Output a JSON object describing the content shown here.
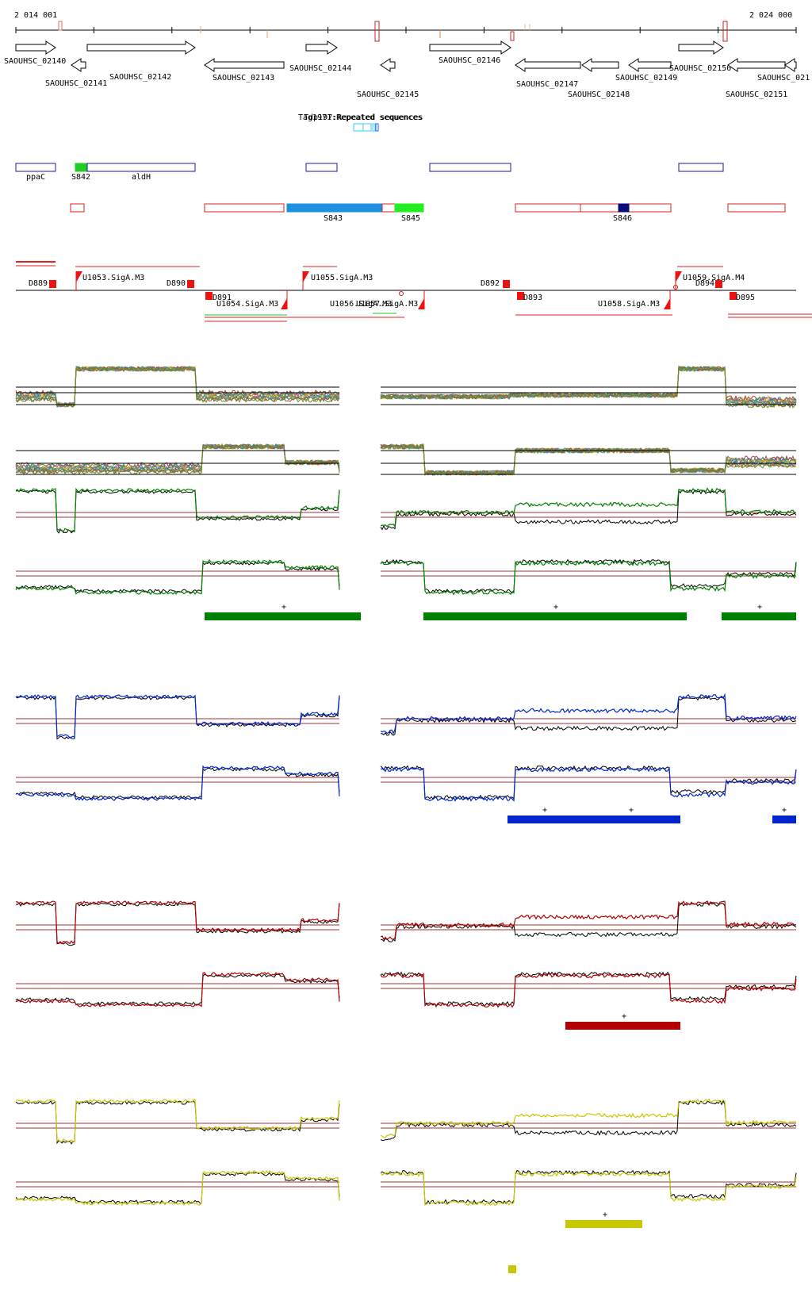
{
  "axis": {
    "start_label": "2 014 001",
    "end_label": "2 024 000"
  },
  "genes": [
    {
      "id": "SAOUHSC_02140",
      "strand": "+",
      "row": 0
    },
    {
      "id": "SAOUHSC_02141",
      "strand": "-",
      "row": 1
    },
    {
      "id": "SAOUHSC_02142",
      "strand": "+",
      "row": 0
    },
    {
      "id": "SAOUHSC_02143",
      "strand": "-",
      "row": 1
    },
    {
      "id": "SAOUHSC_02144",
      "strand": "+",
      "row": 0
    },
    {
      "id": "SAOUHSC_02145",
      "strand": "-",
      "row": 1
    },
    {
      "id": "SAOUHSC_02146",
      "strand": "+",
      "row": 0
    },
    {
      "id": "SAOUHSC_02147",
      "strand": "-",
      "row": 1
    },
    {
      "id": "SAOUHSC_02148",
      "strand": "-",
      "row": 1
    },
    {
      "id": "SAOUHSC_02149",
      "strand": "-",
      "row": 1
    },
    {
      "id": "SAOUHSC_02150",
      "strand": "+",
      "row": 0
    },
    {
      "id": "SAOUHSC_02151",
      "strand": "-",
      "row": 1
    },
    {
      "id": "SAOUHSC_021",
      "strand": "-",
      "row": 1
    }
  ],
  "repeats": {
    "labels": [
      "Tag1971:Repeated sequences",
      "Tdp197:Repeated sequences"
    ]
  },
  "annotations_plus": [
    "ppaC",
    "S842",
    "aldH"
  ],
  "annotations_minus": [
    "S843",
    "S845",
    "S846"
  ],
  "promoters_labels": [
    "D889",
    "U1053.SigA.M3",
    "D890",
    "D891",
    "U1054.SigA.M3",
    "U1055.SigA.M3",
    "U1056.SigA.M3",
    "U1057.SigA.M3",
    "D892",
    "D893",
    "U1058.SigA.M3",
    "U1059.SigA.M4",
    "D894",
    "D895"
  ],
  "sections": [
    {
      "id": "all",
      "color": "#000000",
      "marks": [
        "+",
        "+",
        "+"
      ]
    },
    {
      "id": "green",
      "color": "#008000",
      "marks": [
        "+",
        "+",
        "+"
      ]
    },
    {
      "id": "blue",
      "color": "#0026cc",
      "marks": [
        "+",
        "+",
        "+"
      ]
    },
    {
      "id": "red",
      "color": "#b30000",
      "marks": [
        "+"
      ]
    },
    {
      "id": "yellow",
      "color": "#c8c800",
      "marks": [
        "+"
      ]
    }
  ],
  "colors": {
    "gene_outline": "#000000",
    "plus_box": "#1a1aaa",
    "minus_box": "#dd2222",
    "s842": "#22cc22",
    "s843": "#1e90e0",
    "s845": "#22ee22",
    "s846": "#0b0b7a",
    "threshold": "#a03030",
    "green": "#008000",
    "blue": "#0026cc",
    "red": "#b30000",
    "yellow": "#c8c800"
  }
}
